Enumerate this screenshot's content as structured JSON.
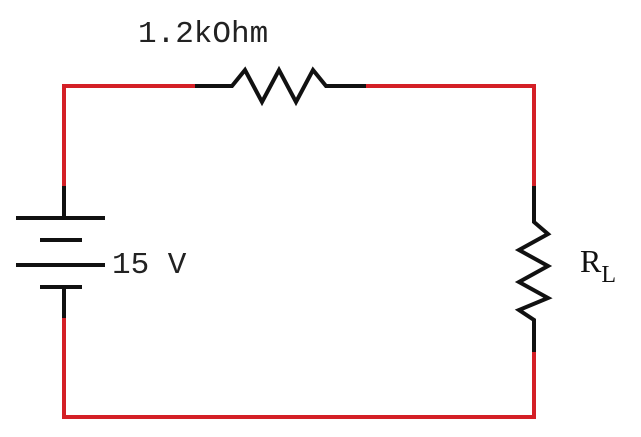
{
  "colors": {
    "wire": "#d41f26",
    "component": "#111111",
    "background": "#ffffff"
  },
  "components": {
    "series_resistor": {
      "label": "1.2kOhm"
    },
    "source": {
      "label": "15 V"
    },
    "load_resistor": {
      "label_main": "R",
      "label_subscript": "L"
    }
  }
}
